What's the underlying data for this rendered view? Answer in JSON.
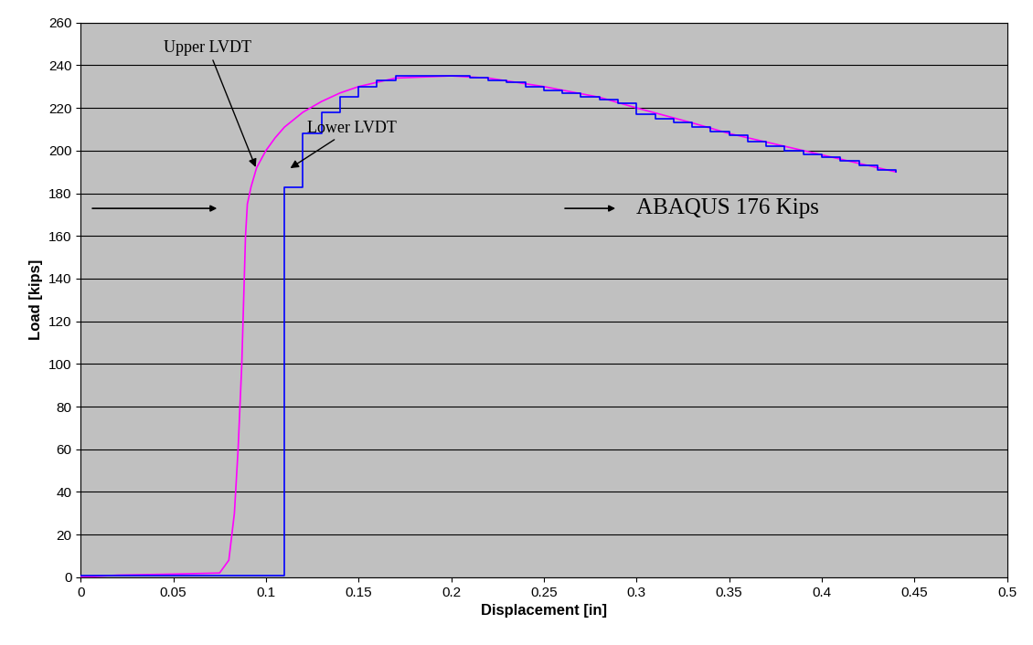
{
  "chart_data": {
    "type": "line",
    "x_label": "Displacement [in]",
    "y_label": "Load [kips]",
    "xlim": [
      0,
      0.5
    ],
    "xticks": [
      0,
      0.05,
      0.1,
      0.15,
      0.2,
      0.25,
      0.3,
      0.35,
      0.4,
      0.45,
      0.5
    ],
    "ylim": [
      0,
      260
    ],
    "yticks": [
      0,
      20,
      40,
      60,
      80,
      100,
      120,
      140,
      160,
      180,
      200,
      220,
      240,
      260
    ],
    "grid": "y",
    "series": [
      {
        "name": "Upper LVDT",
        "color": "#ff00ff",
        "line_style": "solid",
        "x": [
          0,
          0.02,
          0.05,
          0.075,
          0.08,
          0.083,
          0.085,
          0.087,
          0.088,
          0.089,
          0.09,
          0.092,
          0.095,
          0.1,
          0.105,
          0.11,
          0.12,
          0.13,
          0.14,
          0.15,
          0.17,
          0.2,
          0.22,
          0.25,
          0.28,
          0.3,
          0.33,
          0.35,
          0.4,
          0.44
        ],
        "values": [
          0,
          1,
          1.5,
          2,
          8,
          30,
          60,
          100,
          130,
          160,
          175,
          183,
          192,
          200,
          206,
          211,
          218,
          223,
          227,
          230,
          234,
          235,
          234,
          230,
          225,
          220,
          213,
          208,
          198,
          190
        ]
      },
      {
        "name": "Lower LVDT",
        "color": "#0000ff",
        "line_style": "steps",
        "x": [
          0,
          0.11,
          0.12,
          0.13,
          0.14,
          0.15,
          0.16,
          0.17,
          0.21,
          0.22,
          0.23,
          0.24,
          0.25,
          0.26,
          0.27,
          0.28,
          0.29,
          0.3,
          0.31,
          0.32,
          0.33,
          0.34,
          0.35,
          0.36,
          0.37,
          0.38,
          0.39,
          0.4,
          0.41,
          0.42,
          0.43,
          0.44
        ],
        "values": [
          1,
          183,
          208,
          218,
          225,
          230,
          233,
          235,
          234,
          233,
          232,
          230,
          228,
          227,
          225,
          224,
          222,
          217,
          215,
          213,
          211,
          209,
          207,
          204,
          202,
          200,
          198,
          197,
          195,
          193,
          191,
          190
        ]
      }
    ],
    "annotations": [
      "ABAQUS 176 Kips"
    ]
  }
}
